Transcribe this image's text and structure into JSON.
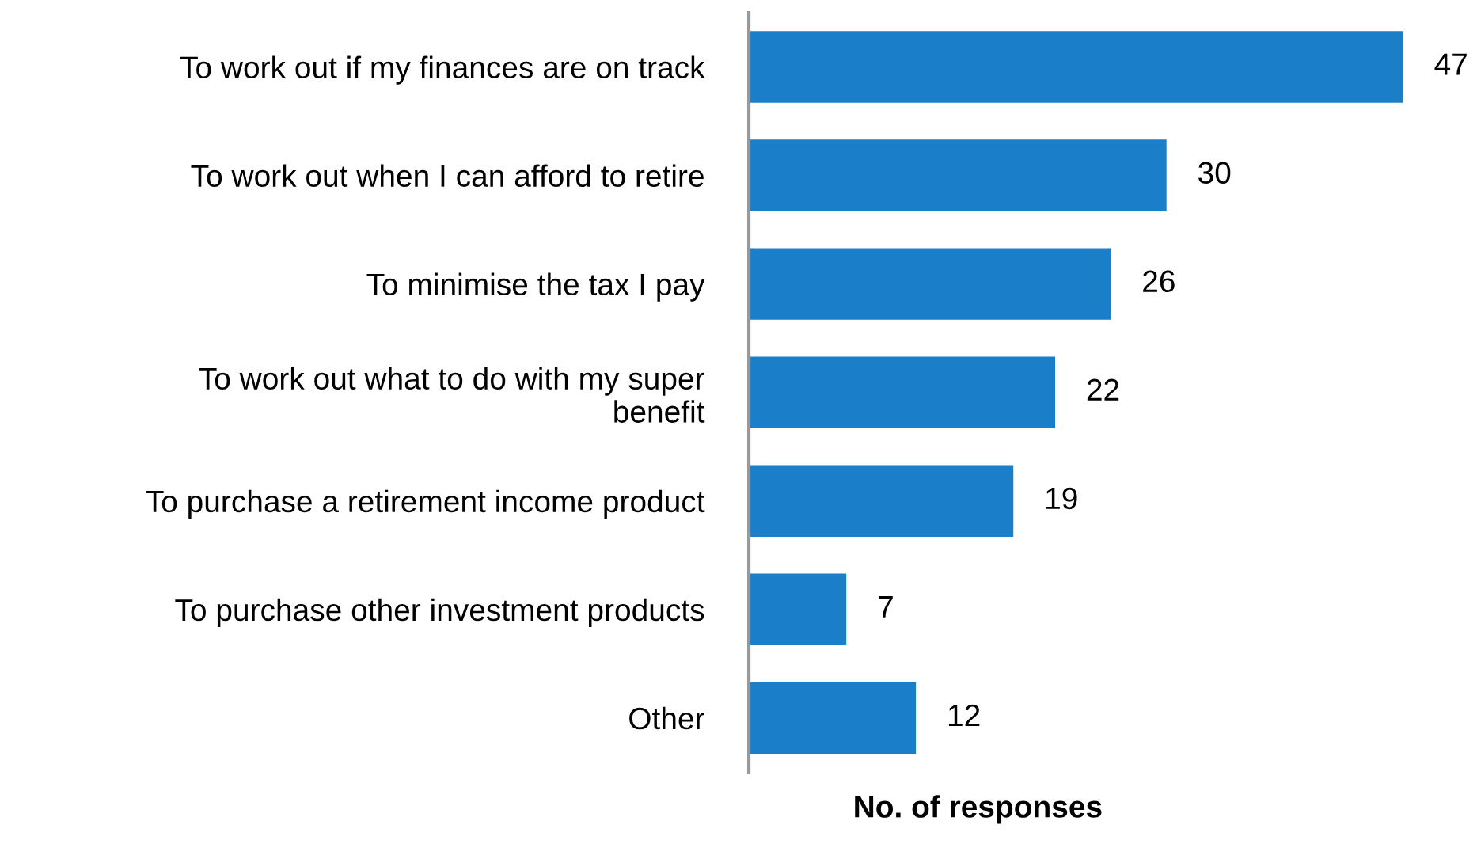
{
  "chart_data": {
    "type": "bar",
    "orientation": "horizontal",
    "xlabel": "No. of responses",
    "categories": [
      "To work out if my finances are on track",
      "To work out when I can afford to retire",
      "To minimise the tax I pay",
      "To work out what to do with my super\nbenefit",
      "To purchase a retirement income product",
      "To purchase other investment products",
      "Other"
    ],
    "values": [
      47,
      30,
      26,
      22,
      19,
      7,
      12
    ],
    "color": "#1a7fc8",
    "data_labels": true,
    "tick_labels": "y",
    "grid": false,
    "legend": false
  }
}
